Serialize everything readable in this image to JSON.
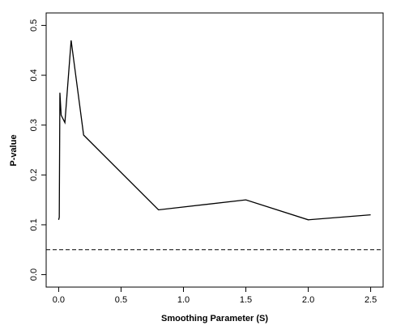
{
  "chart_data": {
    "type": "line",
    "xlabel": "Smoothing Parameter (S)",
    "ylabel": "P-value",
    "x": [
      0,
      0.005,
      0.01,
      0.02,
      0.05,
      0.1,
      0.2,
      0.8,
      1.5,
      2.0,
      2.5
    ],
    "series": [
      {
        "color": "#000000",
        "values": [
          0.11,
          0.115,
          0.365,
          0.32,
          0.305,
          0.47,
          0.28,
          0.13,
          0.15,
          0.11,
          0.12
        ]
      }
    ],
    "xlim": [
      -0.1,
      2.6
    ],
    "ylim": [
      -0.025,
      0.525
    ],
    "xticks": [
      {
        "value": 0,
        "label": "0.0"
      },
      {
        "value": 0.5,
        "label": "0.5"
      },
      {
        "value": 1,
        "label": "1.0"
      },
      {
        "value": 1.5,
        "label": "1.5"
      },
      {
        "value": 2,
        "label": "2.0"
      },
      {
        "value": 2.5,
        "label": "2.5"
      }
    ],
    "yticks": [
      {
        "value": 0,
        "label": "0.0"
      },
      {
        "value": 0.1,
        "label": "0.1"
      },
      {
        "value": 0.2,
        "label": "0.2"
      },
      {
        "value": 0.3,
        "label": "0.3"
      },
      {
        "value": 0.4,
        "label": "0.4"
      },
      {
        "value": 0.5,
        "label": "0.5"
      }
    ],
    "hline": 0.05
  }
}
